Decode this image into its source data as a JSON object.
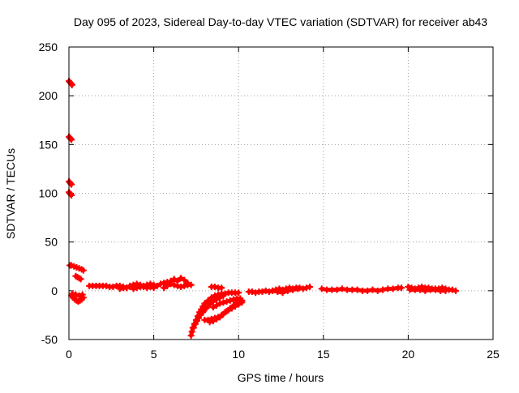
{
  "chart_data": {
    "type": "scatter",
    "title": "Day 095 of 2023, Sidereal Day-to-day VTEC variation (SDTVAR) for receiver ab43",
    "xlabel": "GPS time / hours",
    "ylabel": "SDTVAR / TECUs",
    "xlim": [
      0,
      25
    ],
    "ylim": [
      -50,
      250
    ],
    "x_ticks": [
      0,
      5,
      10,
      15,
      20,
      25
    ],
    "y_ticks": [
      -50,
      0,
      50,
      100,
      150,
      200,
      250
    ],
    "x_tick_labels": [
      "0",
      "5",
      "10",
      "15",
      "20",
      "25"
    ],
    "y_tick_labels": [
      "-50",
      "0",
      "50",
      "100",
      "150",
      "200",
      "250"
    ],
    "grid": true,
    "marker": "+",
    "series": [
      {
        "name": "SDTVAR",
        "color": "#ff0000",
        "segments": [
          [
            [
              0.0,
              215
            ],
            [
              0.05,
              214
            ],
            [
              0.1,
              213
            ],
            [
              0.15,
              212
            ],
            [
              0.18,
              211
            ]
          ],
          [
            [
              0.0,
              158
            ],
            [
              0.05,
              157
            ],
            [
              0.1,
              156
            ],
            [
              0.15,
              155
            ]
          ],
          [
            [
              0.0,
              112
            ],
            [
              0.05,
              111
            ],
            [
              0.1,
              110
            ],
            [
              0.15,
              109
            ]
          ],
          [
            [
              0.0,
              101
            ],
            [
              0.05,
              100
            ],
            [
              0.1,
              99
            ],
            [
              0.15,
              98
            ]
          ],
          [
            [
              0.05,
              26
            ],
            [
              0.15,
              26
            ],
            [
              0.3,
              25
            ],
            [
              0.45,
              24
            ],
            [
              0.6,
              23
            ],
            [
              0.75,
              22
            ],
            [
              0.85,
              21
            ]
          ],
          [
            [
              0.4,
              15
            ],
            [
              0.5,
              14
            ],
            [
              0.6,
              13
            ],
            [
              0.7,
              12
            ]
          ],
          [
            [
              0.15,
              -5
            ],
            [
              0.25,
              -7
            ],
            [
              0.35,
              -9
            ],
            [
              0.45,
              -10
            ],
            [
              0.55,
              -11
            ],
            [
              0.65,
              -10
            ],
            [
              0.75,
              -9
            ],
            [
              0.85,
              -7
            ]
          ],
          [
            [
              0.2,
              -3
            ],
            [
              0.4,
              -4
            ],
            [
              0.6,
              -5
            ],
            [
              0.8,
              -4
            ]
          ],
          [
            [
              1.2,
              5
            ],
            [
              1.4,
              5
            ],
            [
              1.6,
              5
            ],
            [
              1.8,
              5
            ],
            [
              2.0,
              5
            ],
            [
              2.2,
              5
            ],
            [
              2.4,
              4
            ],
            [
              2.6,
              4
            ],
            [
              2.8,
              5
            ],
            [
              3.0,
              5
            ],
            [
              3.2,
              4
            ],
            [
              3.4,
              3
            ],
            [
              3.6,
              5
            ],
            [
              3.8,
              6
            ],
            [
              4.0,
              7
            ],
            [
              4.2,
              6
            ],
            [
              4.4,
              5
            ],
            [
              4.6,
              6
            ],
            [
              4.8,
              7
            ],
            [
              5.0,
              6
            ],
            [
              5.2,
              5
            ],
            [
              5.4,
              7
            ],
            [
              5.6,
              8
            ],
            [
              5.8,
              9
            ],
            [
              6.0,
              7
            ],
            [
              6.2,
              6
            ],
            [
              6.4,
              5
            ],
            [
              6.6,
              4
            ],
            [
              6.8,
              5
            ],
            [
              7.0,
              6
            ],
            [
              7.2,
              6
            ]
          ],
          [
            [
              3.0,
              2
            ],
            [
              3.2,
              3
            ],
            [
              3.4,
              3
            ],
            [
              3.6,
              4
            ],
            [
              3.8,
              2
            ],
            [
              4.0,
              3
            ],
            [
              4.2,
              4
            ],
            [
              4.4,
              4
            ],
            [
              4.6,
              3
            ],
            [
              4.8,
              4
            ],
            [
              5.0,
              3
            ]
          ],
          [
            [
              5.6,
              3
            ],
            [
              5.8,
              5
            ],
            [
              6.0,
              10
            ],
            [
              6.2,
              12
            ],
            [
              6.4,
              10
            ],
            [
              6.6,
              13
            ],
            [
              6.8,
              11
            ],
            [
              7.0,
              8
            ]
          ],
          [
            [
              7.2,
              -46
            ],
            [
              7.25,
              -42
            ],
            [
              7.3,
              -38
            ],
            [
              7.4,
              -34
            ],
            [
              7.5,
              -30
            ],
            [
              7.6,
              -26
            ],
            [
              7.7,
              -22
            ],
            [
              7.8,
              -19
            ],
            [
              7.9,
              -16
            ],
            [
              8.0,
              -13
            ],
            [
              8.2,
              -10
            ],
            [
              8.4,
              -7
            ],
            [
              8.6,
              -5
            ],
            [
              8.8,
              -4
            ],
            [
              9.0,
              -3
            ],
            [
              9.2,
              -3
            ],
            [
              9.4,
              -2
            ],
            [
              9.6,
              -2
            ],
            [
              9.8,
              -2
            ],
            [
              10.0,
              -2
            ]
          ],
          [
            [
              7.35,
              -38
            ],
            [
              7.45,
              -34
            ],
            [
              7.55,
              -31
            ],
            [
              7.65,
              -28
            ],
            [
              7.75,
              -25
            ],
            [
              7.9,
              -22
            ],
            [
              8.1,
              -18
            ],
            [
              8.3,
              -14
            ],
            [
              8.5,
              -11
            ],
            [
              8.7,
              -9
            ],
            [
              8.9,
              -7
            ],
            [
              9.1,
              -5
            ]
          ],
          [
            [
              8.0,
              -30
            ],
            [
              8.2,
              -30
            ],
            [
              8.4,
              -29
            ],
            [
              8.6,
              -28
            ],
            [
              8.8,
              -27
            ],
            [
              9.0,
              -25
            ],
            [
              9.2,
              -22
            ],
            [
              9.4,
              -20
            ],
            [
              9.6,
              -18
            ],
            [
              9.8,
              -16
            ],
            [
              10.0,
              -14
            ],
            [
              10.2,
              -12
            ]
          ],
          [
            [
              8.3,
              -32
            ],
            [
              8.5,
              -31
            ],
            [
              8.7,
              -29
            ],
            [
              8.9,
              -27
            ],
            [
              9.1,
              -24
            ],
            [
              9.3,
              -21
            ],
            [
              9.5,
              -18
            ],
            [
              9.7,
              -15
            ],
            [
              9.9,
              -12
            ],
            [
              10.1,
              -10
            ],
            [
              10.2,
              -10
            ]
          ],
          [
            [
              8.5,
              -17
            ],
            [
              8.7,
              -15
            ],
            [
              8.9,
              -13
            ],
            [
              9.1,
              -12
            ],
            [
              9.3,
              -11
            ],
            [
              9.5,
              -10
            ],
            [
              9.7,
              -9
            ],
            [
              9.9,
              -8
            ],
            [
              10.1,
              -8
            ]
          ],
          [
            [
              8.4,
              4
            ],
            [
              8.6,
              4
            ],
            [
              8.8,
              3
            ],
            [
              9.0,
              3
            ]
          ],
          [
            [
              10.6,
              -1
            ],
            [
              10.8,
              -1
            ],
            [
              11.0,
              -2
            ],
            [
              11.2,
              -1
            ],
            [
              11.4,
              -1
            ],
            [
              11.6,
              0
            ],
            [
              11.8,
              -1
            ],
            [
              12.0,
              0
            ],
            [
              12.2,
              1
            ],
            [
              12.4,
              2
            ],
            [
              12.6,
              1
            ],
            [
              12.8,
              2
            ],
            [
              13.0,
              3
            ],
            [
              13.2,
              2
            ],
            [
              13.4,
              3
            ],
            [
              13.6,
              3
            ],
            [
              13.8,
              2
            ],
            [
              14.0,
              3
            ],
            [
              14.2,
              4
            ]
          ],
          [
            [
              12.0,
              0
            ],
            [
              12.3,
              -1
            ],
            [
              12.6,
              -2
            ],
            [
              12.9,
              0
            ],
            [
              13.2,
              1
            ],
            [
              13.5,
              2
            ]
          ],
          [
            [
              14.9,
              2
            ],
            [
              15.2,
              1
            ],
            [
              15.5,
              1
            ],
            [
              15.8,
              1
            ],
            [
              16.1,
              2
            ],
            [
              16.4,
              1
            ],
            [
              16.7,
              1
            ],
            [
              17.0,
              1
            ],
            [
              17.3,
              0
            ],
            [
              17.6,
              0
            ],
            [
              17.9,
              1
            ],
            [
              18.2,
              0
            ],
            [
              18.5,
              1
            ],
            [
              18.8,
              2
            ],
            [
              19.1,
              2
            ],
            [
              19.4,
              3
            ],
            [
              19.6,
              3
            ]
          ],
          [
            [
              20.0,
              4
            ],
            [
              20.2,
              3
            ],
            [
              20.4,
              2
            ],
            [
              20.6,
              3
            ],
            [
              20.8,
              4
            ],
            [
              21.0,
              3
            ],
            [
              21.2,
              3
            ],
            [
              21.4,
              2
            ],
            [
              21.6,
              2
            ],
            [
              21.8,
              2
            ],
            [
              22.0,
              3
            ],
            [
              22.2,
              2
            ],
            [
              22.4,
              1
            ],
            [
              22.6,
              1
            ],
            [
              22.8,
              0
            ]
          ],
          [
            [
              20.1,
              1
            ],
            [
              20.4,
              1
            ],
            [
              20.7,
              1
            ],
            [
              21.0,
              0
            ],
            [
              21.3,
              1
            ],
            [
              21.6,
              1
            ],
            [
              21.9,
              0
            ],
            [
              22.2,
              0
            ]
          ]
        ]
      }
    ]
  }
}
